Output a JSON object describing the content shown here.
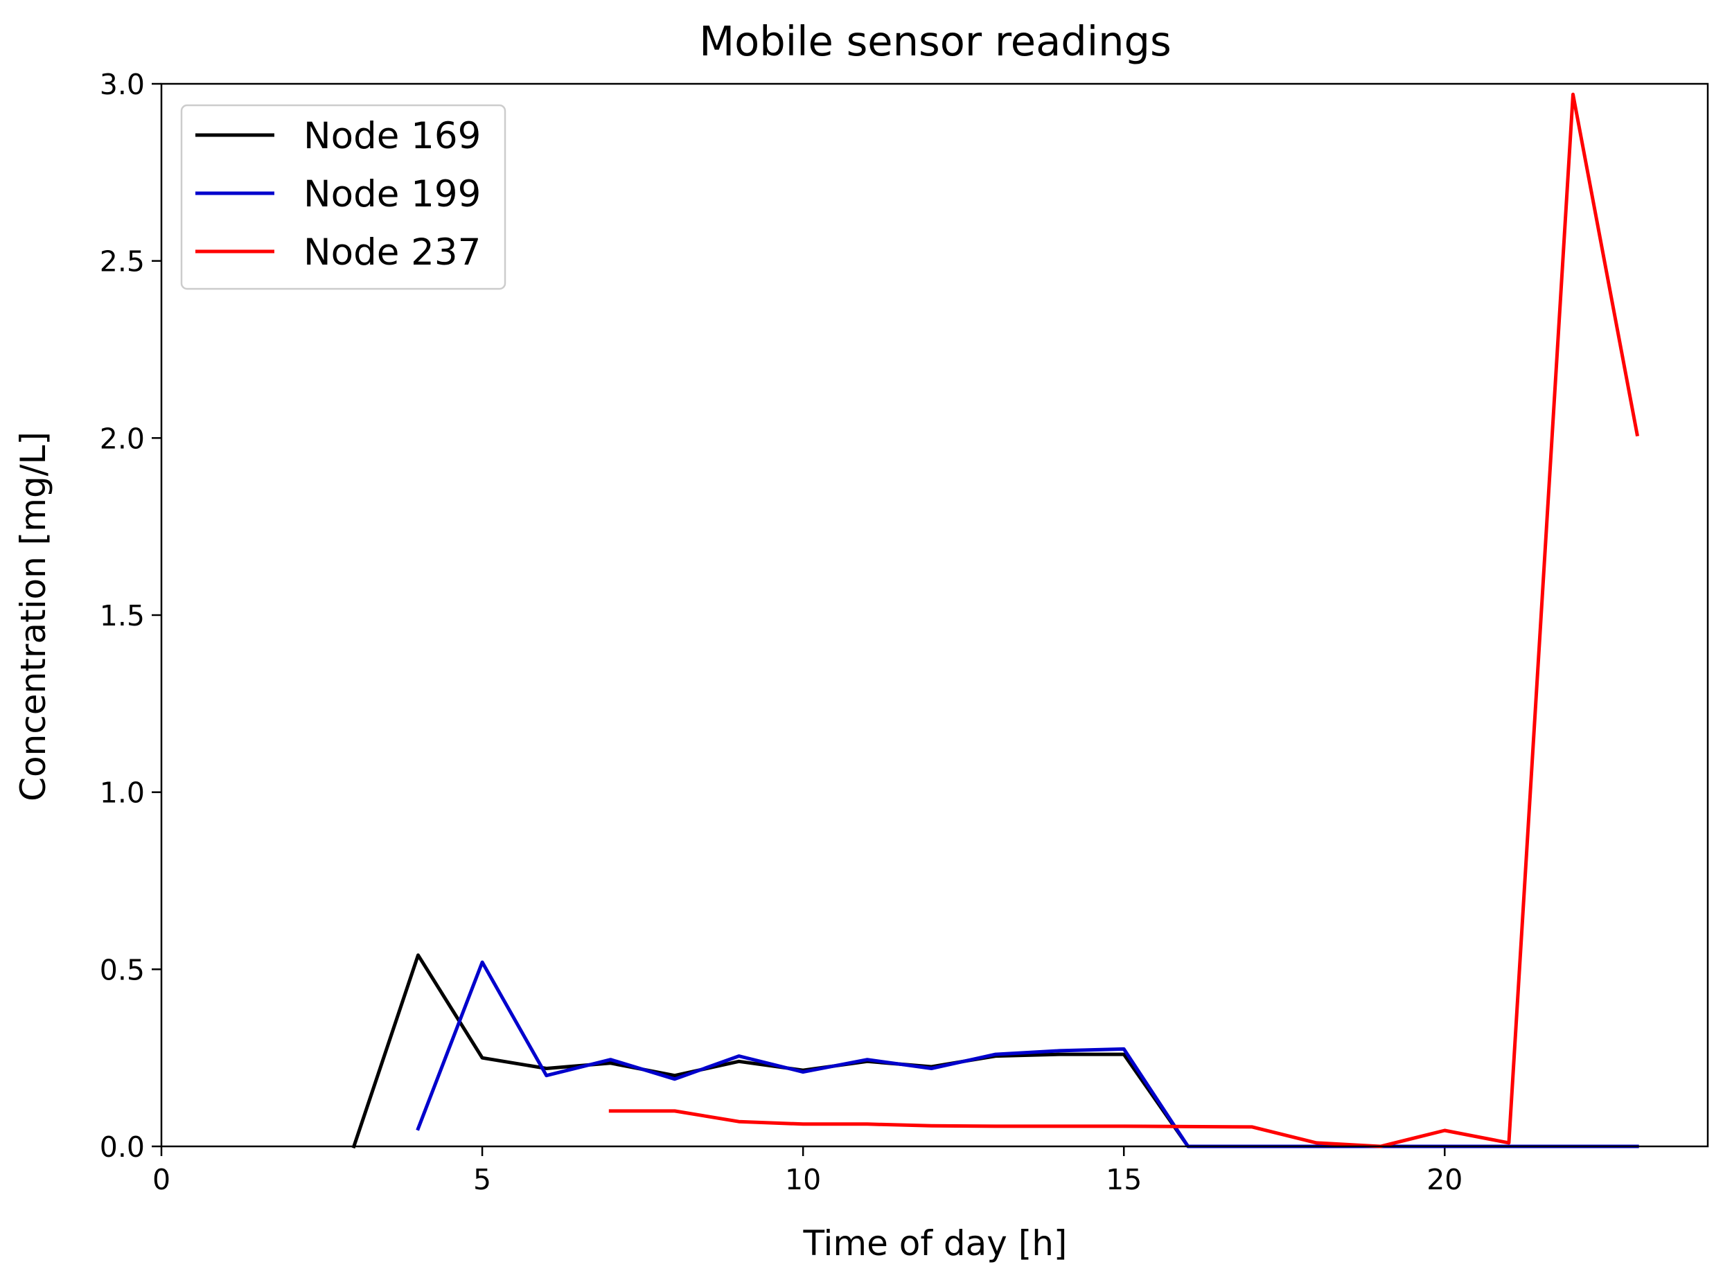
{
  "chart_data": {
    "type": "line",
    "title": "Mobile sensor readings",
    "xlabel": "Time of day [h]",
    "ylabel": "Concentration [mg/L]",
    "xlim": [
      0,
      24.1
    ],
    "ylim": [
      0,
      3.0
    ],
    "xticks": [
      0,
      5,
      10,
      15,
      20
    ],
    "yticks": [
      "0.0",
      "0.5",
      "1.0",
      "1.5",
      "2.0",
      "2.5",
      "3.0"
    ],
    "legend_position": "top-left",
    "grid": false,
    "series": [
      {
        "name": "Node 169",
        "color": "#000000",
        "x": [
          3,
          4,
          5,
          6,
          7,
          8,
          9,
          10,
          11,
          12,
          13,
          14,
          15,
          16,
          17,
          18,
          19,
          20,
          21,
          22,
          23
        ],
        "y": [
          0.0,
          0.54,
          0.25,
          0.22,
          0.235,
          0.2,
          0.24,
          0.215,
          0.24,
          0.225,
          0.255,
          0.26,
          0.26,
          0.0,
          0.0,
          0.0,
          0.0,
          0.0,
          0.0,
          0.0,
          0.0
        ]
      },
      {
        "name": "Node 199",
        "color": "#0000cc",
        "x": [
          4,
          5,
          6,
          7,
          8,
          9,
          10,
          11,
          12,
          13,
          14,
          15,
          16,
          17,
          18,
          19,
          20,
          21,
          22,
          23
        ],
        "y": [
          0.05,
          0.52,
          0.2,
          0.245,
          0.19,
          0.255,
          0.21,
          0.245,
          0.22,
          0.26,
          0.27,
          0.275,
          0.0,
          0.0,
          0.0,
          0.0,
          0.0,
          0.0,
          0.0,
          0.0
        ]
      },
      {
        "name": "Node 237",
        "color": "#ff0000",
        "x": [
          7,
          8,
          9,
          10,
          11,
          12,
          13,
          14,
          15,
          16,
          17,
          18,
          19,
          20,
          21,
          22,
          23
        ],
        "y": [
          0.1,
          0.1,
          0.07,
          0.063,
          0.063,
          0.058,
          0.057,
          0.057,
          0.057,
          0.056,
          0.055,
          0.01,
          0.0,
          0.045,
          0.01,
          2.97,
          2.01
        ]
      }
    ]
  }
}
